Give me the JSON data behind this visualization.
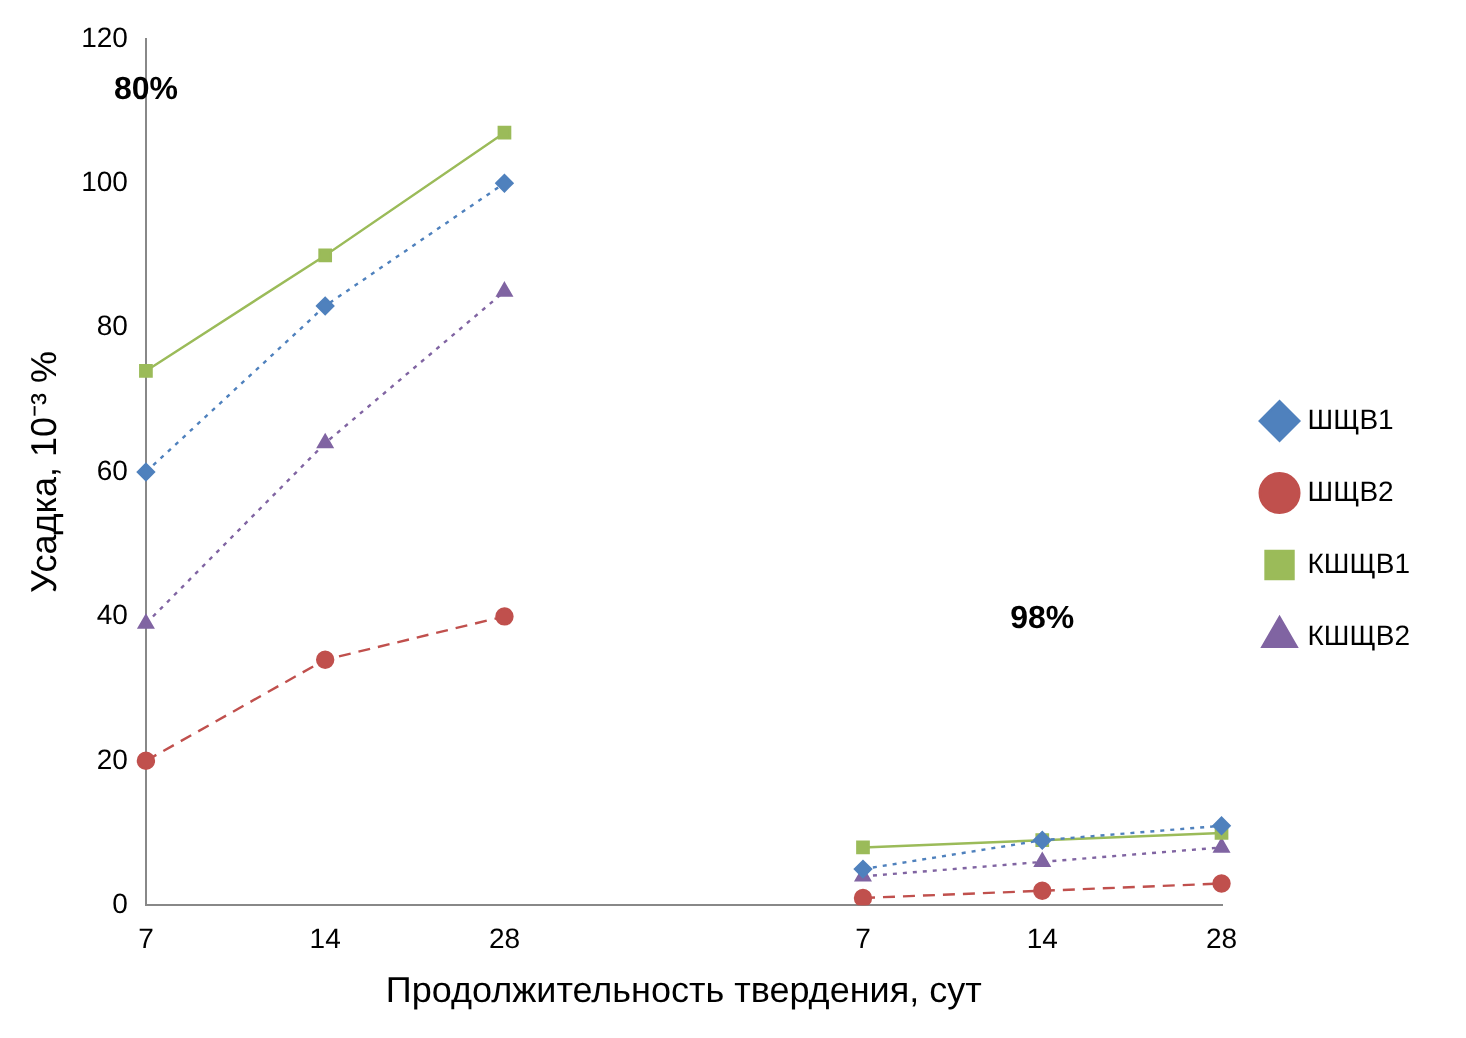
{
  "chart_data": {
    "type": "line",
    "xlabel": "Продолжительность твердения, сут",
    "ylabel": "Усадка, 10⁻³ %",
    "categories": [
      "7",
      "14",
      "28",
      null,
      "7",
      "14",
      "28"
    ],
    "ylim": [
      0,
      120
    ],
    "yticks": [
      0,
      20,
      40,
      60,
      80,
      100,
      120
    ],
    "grid": false,
    "legend": "right",
    "annotations": [
      "80%",
      "98%"
    ],
    "series": [
      {
        "name": "ШЩВ1",
        "color": "#4f81bd",
        "marker": "diamond",
        "line_style": "dotted",
        "values": [
          60,
          83,
          100,
          null,
          5,
          9,
          11
        ]
      },
      {
        "name": "ШЩВ2",
        "color": "#c0504d",
        "marker": "circle",
        "line_style": "dashed",
        "values": [
          20,
          34,
          40,
          null,
          1,
          2,
          3
        ]
      },
      {
        "name": "КШЩВ1",
        "color": "#9bbb59",
        "marker": "square",
        "line_style": "solid",
        "values": [
          74,
          90,
          107,
          null,
          8,
          9,
          10
        ]
      },
      {
        "name": "КШЩВ2",
        "color": "#8064a2",
        "marker": "triangle",
        "line_style": "dotted",
        "values": [
          39,
          64,
          85,
          null,
          4,
          6,
          8
        ]
      }
    ]
  }
}
